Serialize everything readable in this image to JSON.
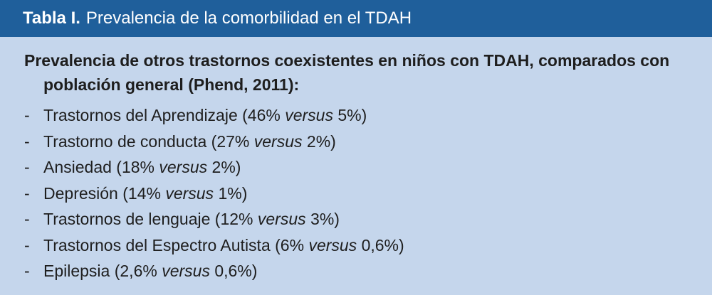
{
  "header": {
    "label": "Tabla I.",
    "title": "Prevalencia de la comorbilidad en el TDAH"
  },
  "content": {
    "intro": "Prevalencia de otros trastornos coexistentes en niños con TDAH, comparados con población general (Phend, 2011):",
    "bullet": "-",
    "versus_word": "versus",
    "items": [
      {
        "pre": "Trastornos del Aprendizaje (46% ",
        "post": " 5%)"
      },
      {
        "pre": "Trastorno de conducta (27% ",
        "post": " 2%)"
      },
      {
        "pre": "Ansiedad (18% ",
        "post": " 2%)"
      },
      {
        "pre": "Depresión (14% ",
        "post": " 1%)"
      },
      {
        "pre": "Trastornos de lenguaje (12% ",
        "post": " 3%)"
      },
      {
        "pre": "Trastornos del Espectro Autista (6% ",
        "post": " 0,6%)"
      },
      {
        "pre": "Epilepsia (2,6% ",
        "post": " 0,6%)"
      }
    ]
  },
  "colors": {
    "header_bg": "#1f5f9b",
    "body_bg": "#c5d6ec",
    "text": "#1e1e1e"
  }
}
